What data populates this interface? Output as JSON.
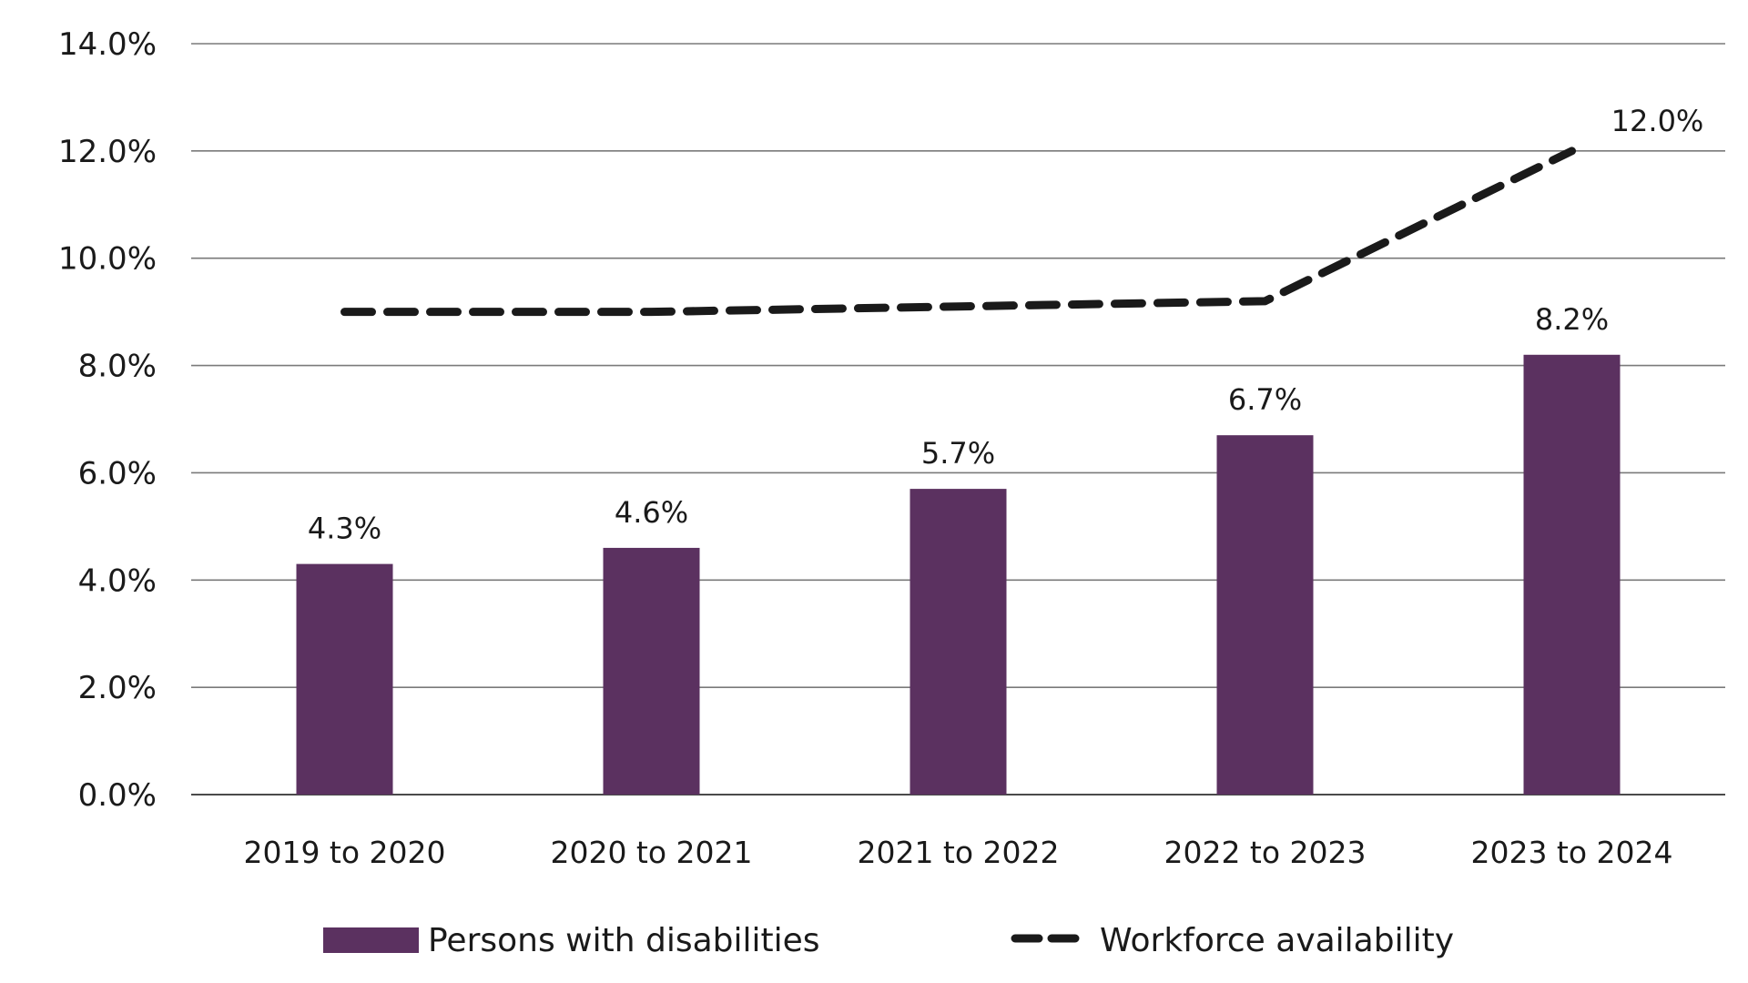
{
  "chart_data": {
    "type": "bar",
    "title": "",
    "xlabel": "",
    "ylabel": "",
    "categories": [
      "2019 to 2020",
      "2020 to 2021",
      "2021 to 2022",
      "2022 to 2023",
      "2023 to 2024"
    ],
    "ylim": [
      0,
      14
    ],
    "yticks": [
      0,
      2,
      4,
      6,
      8,
      10,
      12,
      14
    ],
    "ytick_labels": [
      "0.0%",
      "2.0%",
      "4.0%",
      "6.0%",
      "8.0%",
      "10.0%",
      "12.0%",
      "14.0%"
    ],
    "grid": true,
    "legend_position": "bottom",
    "series": [
      {
        "name": "Persons with disabilities",
        "type": "bar",
        "color": "#5b3160",
        "values": [
          4.3,
          4.6,
          5.7,
          6.7,
          8.2
        ],
        "labels": [
          "4.3%",
          "4.6%",
          "5.7%",
          "6.7%",
          "8.2%"
        ]
      },
      {
        "name": "Workforce availability",
        "type": "line",
        "style": "dashed",
        "color": "#1a1a1a",
        "values": [
          9.0,
          9.0,
          9.1,
          9.2,
          12.0
        ],
        "labels": [
          "",
          "",
          "",
          "",
          "12.0%"
        ]
      }
    ]
  }
}
